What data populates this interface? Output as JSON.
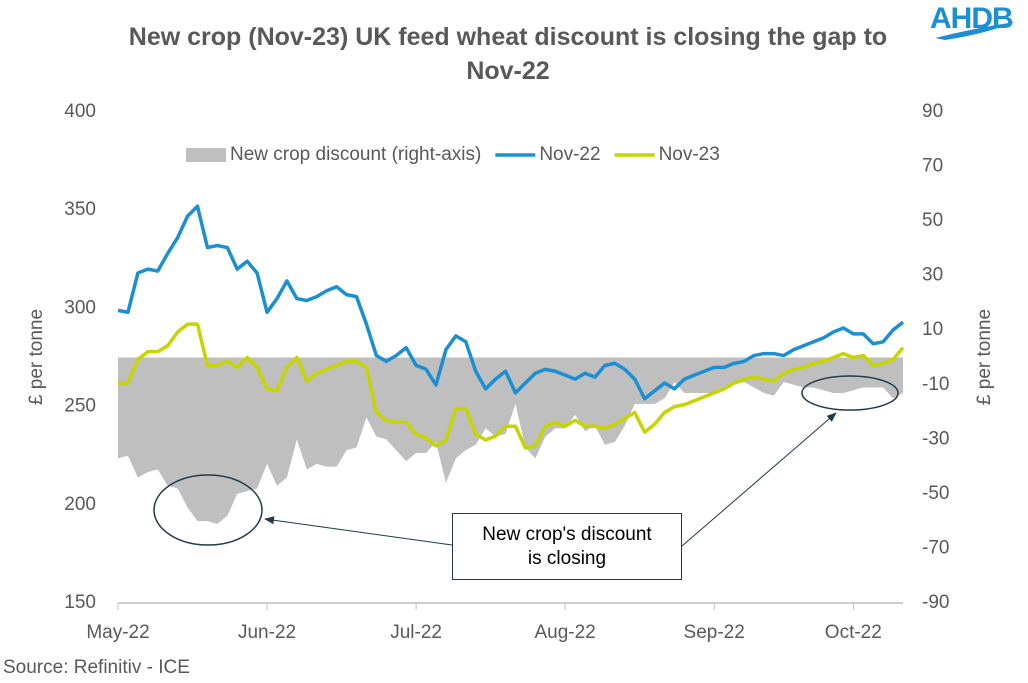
{
  "chart_data": {
    "type": "line",
    "title": "New crop (Nov-23) UK feed wheat discount is closing the gap to Nov-22",
    "logo": "AHDB",
    "source": "Source: Refinitiv - ICE",
    "annotation": "New crop's discount is closing",
    "ylabel": "£ per tonne",
    "y2label": "£ per tonne",
    "categories": [
      "May-22",
      null,
      null,
      null,
      null,
      null,
      null,
      null,
      null,
      null,
      null,
      null,
      null,
      null,
      null,
      "Jun-22",
      null,
      null,
      null,
      null,
      null,
      null,
      null,
      null,
      null,
      null,
      null,
      null,
      null,
      null,
      "Jul-22",
      null,
      null,
      null,
      null,
      null,
      null,
      null,
      null,
      null,
      null,
      null,
      null,
      null,
      null,
      "Aug-22",
      null,
      null,
      null,
      null,
      null,
      null,
      null,
      null,
      null,
      null,
      null,
      null,
      null,
      null,
      "Sep-22",
      null,
      null,
      null,
      null,
      null,
      null,
      null,
      null,
      null,
      null,
      null,
      null,
      null,
      "Oct-22",
      null,
      null,
      null,
      null,
      null
    ],
    "series": [
      {
        "name": "New crop discount (right-axis)",
        "type": "area",
        "axis": "y2",
        "color": "#bfbfbf",
        "values": [
          -37,
          -36,
          -44,
          -42,
          -41,
          -47,
          -48,
          -55,
          -60,
          -60,
          -61,
          -58,
          -50,
          -49,
          -48,
          -39,
          -47,
          -44,
          -30,
          -41,
          -39,
          -40,
          -40,
          -34,
          -33,
          -22,
          -29,
          -30,
          -34,
          -38,
          -35,
          -35,
          -31,
          -46,
          -37,
          -34,
          -32,
          -26,
          -29,
          -28,
          -17,
          -33,
          -37,
          -29,
          -26,
          -26,
          -21,
          -27,
          -25,
          -32,
          -31,
          -25,
          -17,
          -17,
          -17,
          -15,
          -9,
          -13,
          -13,
          -13,
          -13,
          -11,
          -10,
          -9,
          -11,
          -13,
          -14,
          -9,
          -10,
          -11,
          -11,
          -12,
          -13,
          -13,
          -12,
          -11,
          -11,
          -11,
          -15,
          -13
        ]
      },
      {
        "name": "Nov-22",
        "type": "line",
        "color": "#1b8fd2",
        "values": [
          299,
          298,
          318,
          320,
          319,
          328,
          336,
          347,
          352,
          331,
          332,
          331,
          320,
          324,
          318,
          298,
          305,
          314,
          305,
          304,
          306,
          309,
          311,
          307,
          306,
          292,
          276,
          273,
          276,
          280,
          271,
          269,
          261,
          279,
          286,
          283,
          268,
          259,
          264,
          268,
          257,
          262,
          267,
          269,
          268,
          266,
          264,
          267,
          265,
          271,
          272,
          269,
          264,
          254,
          258,
          262,
          259,
          264,
          266,
          268,
          270,
          270,
          272,
          273,
          276,
          277,
          277,
          276,
          279,
          281,
          283,
          285,
          288,
          290,
          287,
          287,
          282,
          283,
          289,
          293
        ]
      },
      {
        "name": "Nov-23",
        "type": "line",
        "color": "#c6d500",
        "values": [
          262,
          262,
          274,
          278,
          278,
          281,
          288,
          292,
          292,
          271,
          271,
          273,
          270,
          275,
          270,
          259,
          258,
          270,
          275,
          263,
          267,
          269,
          271,
          273,
          273,
          270,
          247,
          243,
          242,
          242,
          236,
          234,
          230,
          233,
          249,
          249,
          236,
          233,
          235,
          240,
          240,
          229,
          230,
          240,
          242,
          240,
          243,
          240,
          240,
          239,
          241,
          244,
          247,
          237,
          241,
          247,
          250,
          251,
          253,
          255,
          257,
          259,
          262,
          264,
          265,
          264,
          263,
          267,
          269,
          270,
          272,
          273,
          275,
          277,
          275,
          276,
          271,
          272,
          274,
          280
        ]
      }
    ],
    "ylim": [
      150,
      400
    ],
    "yticks": [
      150,
      200,
      250,
      300,
      350,
      400
    ],
    "y2lim": [
      -90,
      90
    ],
    "y2ticks": [
      -90,
      -70,
      -50,
      -30,
      -10,
      10,
      30,
      50,
      70,
      90
    ]
  }
}
